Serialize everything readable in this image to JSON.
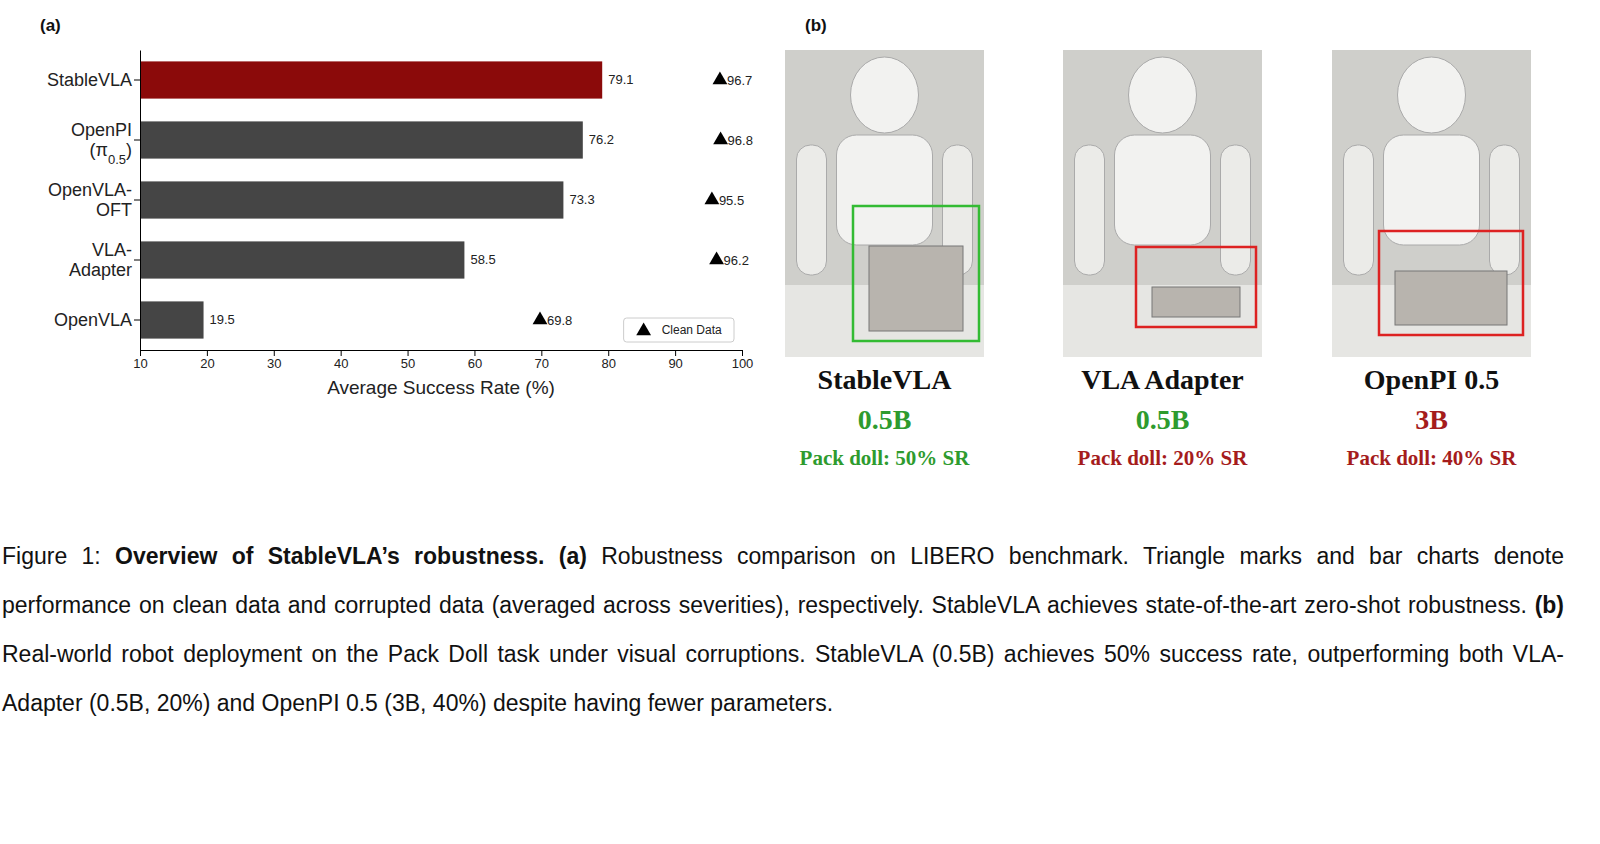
{
  "panel_labels": [
    "(a)",
    "(b)"
  ],
  "chart_data": {
    "type": "bar",
    "orientation": "horizontal",
    "categories": [
      "StableVLA",
      "OpenPI (π0.5)",
      "OpenVLA-OFT",
      "VLA-Adapter",
      "OpenVLA"
    ],
    "series": [
      {
        "values": [
          79.1,
          76.2,
          73.3,
          58.5,
          19.5
        ],
        "colors": [
          "#8b0a0a",
          "#454545",
          "#454545",
          "#454545",
          "#454545"
        ]
      },
      {
        "name": "Clean Data",
        "type": "scatter",
        "marker": "triangle",
        "color": "#000000",
        "values": [
          96.7,
          96.8,
          95.5,
          96.2,
          69.8
        ]
      }
    ],
    "x_label": "Average Success Rate (%)",
    "xlim": [
      10,
      100
    ],
    "xticks": [
      10,
      20,
      30,
      40,
      50,
      60,
      70,
      80,
      90,
      100
    ],
    "data_labels": true,
    "legend": "lower right",
    "grid": false
  },
  "panel_b": {
    "items": [
      {
        "model": "StableVLA",
        "params": "0.5B",
        "result": "Pack doll: 50% SR",
        "params_color": "#2e9b2e",
        "result_color": "#2e9b2e",
        "box_color": "#33bb33"
      },
      {
        "model": "VLA Adapter",
        "params": "0.5B",
        "result": "Pack doll: 20% SR",
        "params_color": "#2e9b2e",
        "result_color": "#a51c1c",
        "box_color": "#dd2222"
      },
      {
        "model": "OpenPI 0.5",
        "params": "3B",
        "result": "Pack doll: 40% SR",
        "params_color": "#a51c1c",
        "result_color": "#a51c1c",
        "box_color": "#dd2222"
      }
    ]
  },
  "caption": [
    {
      "text": "Figure 1: ",
      "bold": false
    },
    {
      "text": "Overview of StableVLA’s robustness. (a)",
      "bold": true
    },
    {
      "text": " Robustness comparison on LIBERO benchmark. Triangle marks and bar charts denote performance on clean data and corrupted data (averaged across severities), respectively. StableVLA achieves state-of-the-art zero-shot robustness. ",
      "bold": false
    },
    {
      "text": "(b)",
      "bold": true
    },
    {
      "text": " Real-world robot deployment on the Pack Doll task under visual corruptions. StableVLA (0.5B) achieves 50% success rate, outperforming both VLA-Adapter (0.5B, 20%) and OpenPI 0.5 (3B, 40%) despite having fewer parameters.",
      "bold": false
    }
  ]
}
